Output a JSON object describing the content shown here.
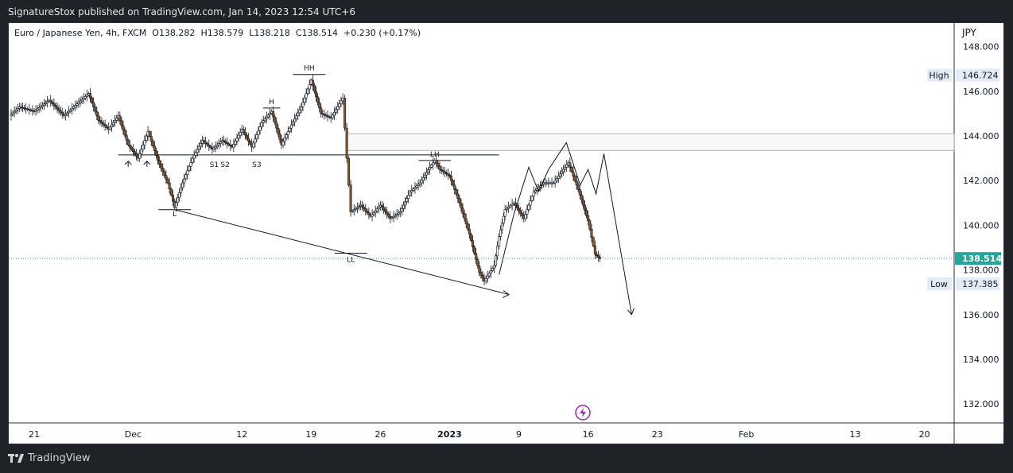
{
  "header": {
    "published": "SignatureStox published on TradingView.com, Jan 14, 2023 12:54 UTC+6"
  },
  "legend": {
    "symbol": "Euro / Japanese Yen, 4h, FXCM",
    "open_label": "O",
    "open": "138.282",
    "high_label": "H",
    "high": "138.579",
    "low_label": "L",
    "low": "138.218",
    "close_label": "C",
    "close": "138.514",
    "change": "+0.230 (+0.17%)"
  },
  "footer": {
    "brand": "TradingView"
  },
  "colors": {
    "up": "#26a69a",
    "down": "#ef5350",
    "candle_body_up": "#ffffff",
    "candle_body_down": "#8b5a2b",
    "price_badge": "#26a69a",
    "line": "#131722"
  },
  "chart_data": {
    "type": "candlestick",
    "currency": "JPY",
    "y_ticks": [
      148,
      146,
      144,
      142,
      140,
      138,
      136,
      134,
      132
    ],
    "y_tick_labels": [
      "148.000",
      "146.000",
      "144.000",
      "142.000",
      "140.000",
      "138.000",
      "136.000",
      "134.000",
      "132.000"
    ],
    "ylim": [
      130.8,
      149.5
    ],
    "x_tick_labels": [
      "21",
      "Dec",
      "12",
      "19",
      "26",
      "2023",
      "9",
      "16",
      "23",
      "Feb",
      "13",
      "20"
    ],
    "x_tick_days": [
      0,
      10,
      21,
      28,
      35,
      42,
      49,
      56,
      63,
      72,
      83,
      90
    ],
    "xlim": [
      0,
      94
    ],
    "last_price": 138.514,
    "last_price_label": "138.514",
    "high_marker": {
      "label": "High",
      "value": 146.724,
      "value_label": "146.724"
    },
    "low_marker": {
      "label": "Low",
      "value": 137.385,
      "value_label": "137.385"
    },
    "price_path": [
      [
        -2.5,
        144.9
      ],
      [
        -1.5,
        145.3
      ],
      [
        0,
        145.1
      ],
      [
        1.5,
        145.6
      ],
      [
        3,
        144.9
      ],
      [
        4.5,
        145.5
      ],
      [
        5.5,
        145.9
      ],
      [
        6.5,
        144.7
      ],
      [
        7.5,
        144.3
      ],
      [
        8.5,
        144.9
      ],
      [
        9.5,
        143.6
      ],
      [
        10.5,
        143.0
      ],
      [
        11.5,
        144.2
      ],
      [
        12.5,
        142.9
      ],
      [
        13.5,
        141.9
      ],
      [
        14.2,
        140.8
      ],
      [
        15,
        141.9
      ],
      [
        16,
        143.0
      ],
      [
        17,
        143.8
      ],
      [
        18,
        143.4
      ],
      [
        19,
        143.8
      ],
      [
        20,
        143.5
      ],
      [
        21,
        144.3
      ],
      [
        22,
        143.5
      ],
      [
        23,
        144.6
      ],
      [
        24,
        145.1
      ],
      [
        25,
        143.6
      ],
      [
        26,
        144.5
      ],
      [
        27,
        145.3
      ],
      [
        28,
        146.5
      ],
      [
        29,
        145.0
      ],
      [
        30,
        144.8
      ],
      [
        31.2,
        145.7
      ],
      [
        31.6,
        143.0
      ],
      [
        32,
        140.6
      ],
      [
        33,
        140.9
      ],
      [
        34,
        140.4
      ],
      [
        35,
        140.9
      ],
      [
        36,
        140.3
      ],
      [
        37,
        140.6
      ],
      [
        38,
        141.5
      ],
      [
        39,
        141.9
      ],
      [
        40,
        142.6
      ],
      [
        40.5,
        142.9
      ],
      [
        41,
        142.5
      ],
      [
        42,
        142.2
      ],
      [
        43,
        141.0
      ],
      [
        44,
        139.6
      ],
      [
        45,
        137.9
      ],
      [
        45.5,
        137.5
      ],
      [
        46.5,
        138.2
      ],
      [
        47,
        139.5
      ],
      [
        47.6,
        140.7
      ],
      [
        48.5,
        141.0
      ],
      [
        49.5,
        140.3
      ],
      [
        50.5,
        141.5
      ],
      [
        51.5,
        141.9
      ],
      [
        52.5,
        141.9
      ],
      [
        53.5,
        142.5
      ],
      [
        54,
        142.8
      ],
      [
        55,
        141.6
      ],
      [
        56,
        140.2
      ],
      [
        56.7,
        138.7
      ],
      [
        57.2,
        138.5
      ]
    ],
    "drawings": {
      "horizontal_level": {
        "value": 143.15,
        "from_day": 8.5,
        "to_day": 47
      },
      "resistance_zone": {
        "top": 144.1,
        "bottom": 143.35,
        "from_day": 31.6,
        "to_day": 94
      },
      "trendline": {
        "from": [
          14.2,
          140.7
        ],
        "to": [
          48,
          136.9
        ]
      },
      "projection": [
        [
          47,
          137.8
        ],
        [
          48.5,
          140.5
        ],
        [
          50,
          142.6
        ],
        [
          51,
          141.5
        ],
        [
          52,
          142.5
        ],
        [
          53.8,
          143.7
        ],
        [
          55.2,
          141.8
        ],
        [
          56,
          142.5
        ],
        [
          56.8,
          141.4
        ],
        [
          57.6,
          143.2
        ],
        [
          60.4,
          136.0
        ]
      ],
      "labels": [
        {
          "text": "HH",
          "day": 27.8,
          "value": 146.75
        },
        {
          "text": "H",
          "day": 24.0,
          "value": 145.25
        },
        {
          "text": "LH",
          "day": 40.5,
          "value": 142.9
        },
        {
          "text": "L",
          "day": 14.2,
          "value": 140.8
        },
        {
          "text": "LL",
          "day": 32.0,
          "value": 138.75
        },
        {
          "text": "S1",
          "day": 18.2,
          "value": 143.0
        },
        {
          "text": "S2",
          "day": 19.3,
          "value": 143.0
        },
        {
          "text": "S3",
          "day": 22.5,
          "value": 143.0
        }
      ]
    }
  }
}
